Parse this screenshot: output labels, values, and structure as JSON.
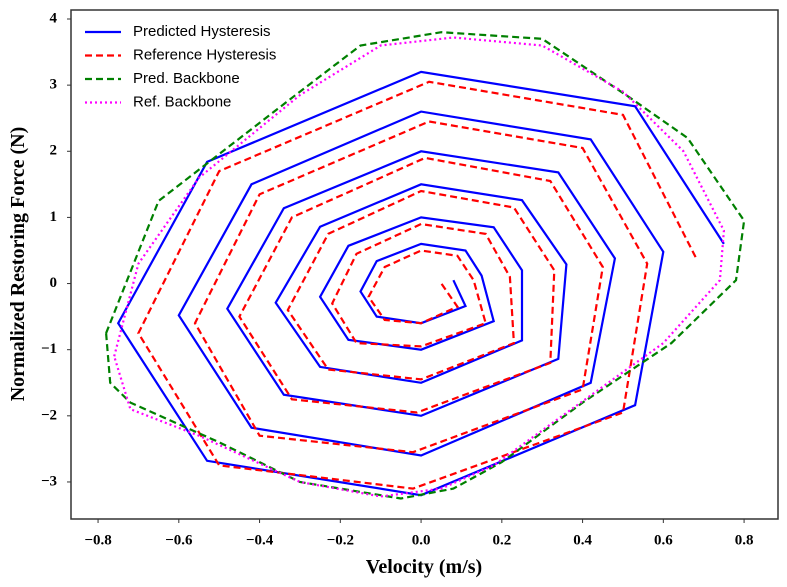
{
  "chart_data": {
    "type": "line",
    "xlabel": "Velocity (m/s)",
    "ylabel": "Normalized Restoring Force (N)",
    "xlim": [
      -0.867,
      0.884
    ],
    "ylim": [
      -3.56,
      4.136
    ],
    "xticks": [
      {
        "value": -0.8,
        "label": "−0.8"
      },
      {
        "value": -0.6,
        "label": "−0.6"
      },
      {
        "value": -0.4,
        "label": "−0.4"
      },
      {
        "value": -0.2,
        "label": "−0.2"
      },
      {
        "value": 0,
        "label": "0.0"
      },
      0.2,
      0.4,
      0.6,
      0.8
    ],
    "yticks": [
      {
        "value": -3,
        "label": "−3"
      },
      {
        "value": -2,
        "label": "−2"
      },
      {
        "value": -1,
        "label": "−1"
      },
      0,
      1,
      2,
      3,
      4
    ],
    "grid": false,
    "legend": "upper left",
    "series": [
      {
        "name": "Predicted Hysteresis",
        "color": "#0000ff",
        "style": "solid",
        "x": [
          0.75,
          0.53,
          0.0,
          -0.53,
          -0.75,
          -0.53,
          0.0,
          0.53,
          0.6,
          0.42,
          0.0,
          -0.42,
          -0.6,
          -0.42,
          0.0,
          0.42,
          0.48,
          0.34,
          0.0,
          -0.34,
          -0.48,
          -0.34,
          0.0,
          0.34,
          0.36,
          0.25,
          0.0,
          -0.25,
          -0.36,
          -0.25,
          0.0,
          0.25,
          0.25,
          0.18,
          0.0,
          -0.18,
          -0.25,
          -0.18,
          0.0,
          0.18,
          0.15,
          0.11,
          0.0,
          -0.11,
          -0.15,
          -0.11,
          0.0,
          0.11,
          0.08
        ],
        "values": [
          0.6,
          2.68,
          3.2,
          1.84,
          -0.6,
          -2.68,
          -3.2,
          -1.84,
          0.48,
          2.18,
          2.6,
          1.5,
          -0.48,
          -2.18,
          -2.6,
          -1.5,
          0.38,
          1.68,
          2.0,
          1.14,
          -0.38,
          -1.68,
          -2.0,
          -1.14,
          0.29,
          1.26,
          1.5,
          0.86,
          -0.29,
          -1.26,
          -1.5,
          -0.86,
          0.2,
          0.85,
          1.0,
          0.57,
          -0.2,
          -0.85,
          -1.0,
          -0.57,
          0.12,
          0.5,
          0.6,
          0.34,
          -0.12,
          -0.5,
          -0.6,
          -0.34,
          0.05
        ]
      },
      {
        "name": "Reference Hysteresis",
        "color": "#ff0000",
        "style": "dashed",
        "x": [
          0.68,
          0.5,
          0.02,
          -0.5,
          -0.7,
          -0.5,
          -0.02,
          0.5,
          0.56,
          0.4,
          0.02,
          -0.4,
          -0.56,
          -0.4,
          -0.02,
          0.4,
          0.45,
          0.32,
          0.01,
          -0.32,
          -0.45,
          -0.32,
          -0.01,
          0.32,
          0.33,
          0.23,
          0.0,
          -0.23,
          -0.33,
          -0.23,
          0.0,
          0.23,
          0.22,
          0.16,
          0.0,
          -0.16,
          -0.22,
          -0.16,
          0.0,
          0.16,
          0.13,
          0.09,
          0.0,
          -0.09,
          -0.13,
          -0.09,
          0.0,
          0.09,
          0.05
        ],
        "values": [
          0.4,
          2.55,
          3.05,
          1.7,
          -0.75,
          -2.75,
          -3.1,
          -1.95,
          0.3,
          2.05,
          2.45,
          1.35,
          -0.6,
          -2.3,
          -2.55,
          -1.6,
          0.25,
          1.55,
          1.9,
          1.0,
          -0.5,
          -1.75,
          -1.95,
          -1.2,
          0.2,
          1.15,
          1.4,
          0.75,
          -0.4,
          -1.3,
          -1.45,
          -0.9,
          0.1,
          0.75,
          0.9,
          0.45,
          -0.3,
          -0.9,
          -0.95,
          -0.6,
          0.05,
          0.42,
          0.5,
          0.25,
          -0.2,
          -0.55,
          -0.6,
          -0.35,
          0.0
        ]
      },
      {
        "name": "Pred. Backbone",
        "color": "#008000",
        "style": "dashed",
        "x": [
          -0.78,
          -0.65,
          -0.3,
          -0.15,
          0.05,
          0.3,
          0.52,
          0.66,
          0.8,
          0.78,
          0.62,
          0.4,
          0.2,
          0.08,
          -0.05,
          -0.3,
          -0.5,
          -0.72,
          -0.77,
          -0.78
        ],
        "values": [
          -0.75,
          1.25,
          2.9,
          3.6,
          3.8,
          3.7,
          2.8,
          2.2,
          0.95,
          0.05,
          -0.9,
          -1.8,
          -2.7,
          -3.1,
          -3.25,
          -3.0,
          -2.4,
          -1.8,
          -1.5,
          -0.75
        ]
      },
      {
        "name": "Ref. Backbone",
        "color": "#ff00ff",
        "style": "dotted",
        "x": [
          -0.76,
          -0.7,
          -0.55,
          -0.3,
          -0.1,
          0.08,
          0.3,
          0.5,
          0.65,
          0.75,
          0.74,
          0.6,
          0.35,
          0.18,
          0.05,
          -0.1,
          -0.3,
          -0.55,
          -0.72,
          -0.76
        ],
        "values": [
          -1.1,
          0.3,
          1.6,
          2.85,
          3.6,
          3.72,
          3.6,
          2.9,
          2.0,
          0.8,
          0.05,
          -0.9,
          -2.0,
          -2.75,
          -3.1,
          -3.22,
          -3.0,
          -2.3,
          -1.9,
          -1.1
        ]
      }
    ]
  }
}
